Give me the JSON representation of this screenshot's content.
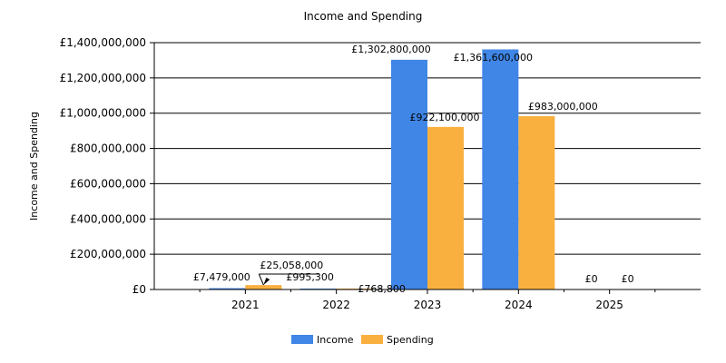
{
  "chart_data": {
    "type": "bar",
    "title": "Income and Spending",
    "ylabel": "Income and Spending",
    "xlabel": "",
    "ylim": [
      0,
      1400000000
    ],
    "y_ticks": [
      0,
      200000000,
      400000000,
      600000000,
      800000000,
      1000000000,
      1200000000,
      1400000000
    ],
    "y_tick_labels": [
      "£0",
      "£200,000,000",
      "£400,000,000",
      "£600,000,000",
      "£800,000,000",
      "£1,000,000,000",
      "£1,200,000,000",
      "£1,400,000,000"
    ],
    "categories": [
      "2021",
      "2022",
      "2023",
      "2024",
      "2025"
    ],
    "series": [
      {
        "name": "Income",
        "color": "#3f86e6",
        "values": [
          7479000,
          995300,
          1302800000,
          1361600000,
          0
        ],
        "labels": [
          "£7,479,000",
          "£995,300",
          "£1,302,800,000",
          "£1,361,600,000",
          "£0"
        ]
      },
      {
        "name": "Spending",
        "color": "#f9b03f",
        "values": [
          25058000,
          768800,
          922100000,
          983000000,
          0
        ],
        "labels": [
          "£25,058,000",
          "£768,800",
          "£922,100,000",
          "£983,000,000",
          "£0"
        ]
      }
    ],
    "grid": true,
    "legend_position": "bottom-center"
  }
}
